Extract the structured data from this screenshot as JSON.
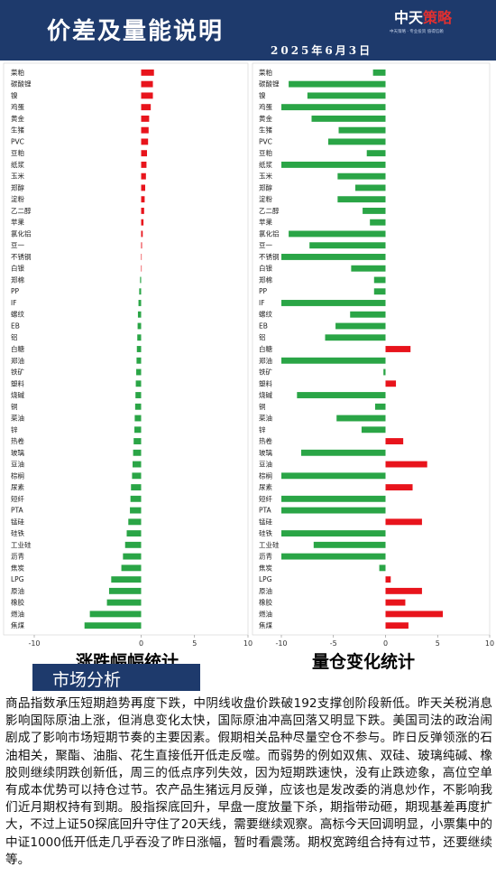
{
  "header": {
    "title": "价差及量能说明",
    "date": "2025年6月3日",
    "brand_left": "中天",
    "brand_right": "策略",
    "brand_sub": "中天策略 · 专业投资 值得信赖"
  },
  "colors": {
    "up": "#e8141c",
    "down": "#2aa546",
    "header_bg": "#1e3a6c"
  },
  "chart_data": [
    {
      "type": "bar",
      "orientation": "horizontal",
      "caption": "涨跌幅幅统计",
      "xlim": [
        -10,
        10
      ],
      "xticks": [
        "-10",
        "0",
        "5",
        "10"
      ],
      "categories": [
        "菜粕",
        "碳酸锂",
        "镍",
        "鸡蛋",
        "黄金",
        "生猪",
        "PVC",
        "豆粕",
        "纸浆",
        "玉米",
        "郑醇",
        "淀粉",
        "乙二醇",
        "苹果",
        "氯化铝",
        "豆一",
        "不锈钢",
        "白银",
        "郑棉",
        "PP",
        "IF",
        "螺纹",
        "EB",
        "铝",
        "白糖",
        "郑油",
        "铁矿",
        "塑料",
        "烧碱",
        "铜",
        "菜油",
        "锌",
        "热卷",
        "玻璃",
        "豆油",
        "棕榈",
        "尿素",
        "短纤",
        "PTA",
        "锰硅",
        "硅铁",
        "工业硅",
        "沥青",
        "焦炭",
        "LPG",
        "原油",
        "橡胶",
        "燃油",
        "焦煤"
      ],
      "values": [
        1.2,
        1.1,
        1.1,
        0.9,
        0.75,
        0.7,
        0.65,
        0.55,
        0.5,
        0.45,
        0.38,
        0.33,
        0.28,
        0.22,
        0.15,
        0.08,
        0.02,
        0.0,
        -0.1,
        -0.18,
        -0.25,
        -0.3,
        -0.33,
        -0.36,
        -0.4,
        -0.43,
        -0.46,
        -0.5,
        -0.53,
        -0.56,
        -0.6,
        -0.63,
        -0.7,
        -0.75,
        -0.8,
        -0.85,
        -0.95,
        -1.0,
        -1.05,
        -1.2,
        -1.35,
        -1.5,
        -1.7,
        -1.85,
        -2.8,
        -3.0,
        -3.2,
        -4.8,
        -5.3
      ]
    },
    {
      "type": "bar",
      "orientation": "horizontal",
      "caption": "量仓变化统计",
      "xlim": [
        -10,
        10
      ],
      "xticks": [
        "-10",
        "-5",
        "0",
        "5",
        "10"
      ],
      "categories": [
        "菜粕",
        "碳酸锂",
        "镍",
        "鸡蛋",
        "黄金",
        "生猪",
        "PVC",
        "豆粕",
        "纸浆",
        "玉米",
        "郑醇",
        "淀粉",
        "乙二醇",
        "苹果",
        "氯化铝",
        "豆一",
        "不锈钢",
        "白银",
        "郑棉",
        "PP",
        "IF",
        "螺纹",
        "EB",
        "铝",
        "白糖",
        "郑油",
        "铁矿",
        "塑料",
        "烧碱",
        "铜",
        "菜油",
        "锌",
        "热卷",
        "玻璃",
        "豆油",
        "棕榈",
        "尿素",
        "短纤",
        "PTA",
        "锰硅",
        "硅铁",
        "工业硅",
        "沥青",
        "焦炭",
        "LPG",
        "原油",
        "橡胶",
        "燃油",
        "焦煤"
      ],
      "values": [
        -1.2,
        -9.3,
        -7.5,
        -10.0,
        -7.1,
        -4.5,
        -5.5,
        -1.8,
        -10.0,
        -4.6,
        -2.9,
        -4.6,
        -2.2,
        -1.5,
        -9.3,
        -7.3,
        -10.0,
        -3.3,
        -1.1,
        -1.1,
        -10.0,
        -3.4,
        -4.8,
        -5.8,
        2.4,
        -10.0,
        -0.2,
        1.0,
        -8.5,
        -1.0,
        -4.7,
        -2.3,
        1.7,
        -8.1,
        4.0,
        -10.0,
        2.6,
        -10.0,
        -10.0,
        3.5,
        -10.0,
        -6.9,
        -10.0,
        -0.6,
        0.5,
        3.5,
        1.9,
        5.5,
        2.2
      ]
    }
  ],
  "section": {
    "title": "市场分析"
  },
  "analysis": {
    "text": "商品指数承压短期趋势再度下跌，中阴线收盘价跌破192支撑创阶段新低。昨天关税消息影响国际原油上涨，但消息变化太快，国际原油冲高回落又明显下跌。美国司法的政治闹剧成了影响市场短期节奏的主要因素。假期相关品种尽量空仓不参与。昨日反弹领涨的石油相关，聚酯、油脂、花生直接低开低走反噬。而弱势的例如双焦、双硅、玻璃纯碱、橡胶则继续阴跌创新低，周三的低点序列失效，因为短期跌速快，没有止跌迹象，高位空单有成本优势可以持仓过节。农产品生猪远月反弹，应该也是发改委的消息炒作，不影响我们近月期权持有到期。股指探底回升，早盘一度放量下杀，期指带动砸，期现基差再度扩大，不过上证50探底回升守住了20天线，需要继续观察。高标今天回调明显，小票集中的中证1000低开低走几乎吞没了昨日涨幅，暂时看震荡。期权宽跨组合持有过节，还要继续等。"
  }
}
